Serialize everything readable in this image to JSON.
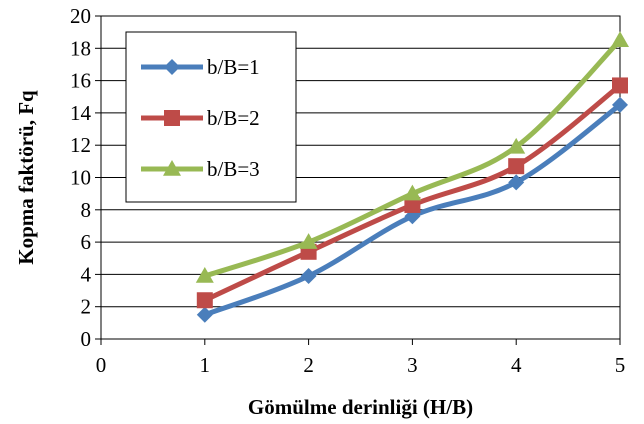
{
  "chart_data": {
    "type": "line",
    "xlabel": "Gömülme derinliği (H/B)",
    "ylabel": "Kopma faktörü, Fq",
    "xlim": [
      0,
      5
    ],
    "ylim": [
      0,
      20
    ],
    "x_ticks": [
      "0",
      "1",
      "2",
      "3",
      "4",
      "5"
    ],
    "y_ticks": [
      "0",
      "2",
      "4",
      "6",
      "8",
      "10",
      "12",
      "14",
      "16",
      "18",
      "20"
    ],
    "grid": "horizontal",
    "legend_position": "top-left",
    "x": [
      1,
      2,
      3,
      4,
      5
    ],
    "series": [
      {
        "name": "b/B=1",
        "color": "#4a7ebb",
        "marker": "diamond",
        "values": [
          1.5,
          3.9,
          7.6,
          9.7,
          14.5
        ]
      },
      {
        "name": "b/B=2",
        "color": "#be4b48",
        "marker": "square",
        "values": [
          2.4,
          5.4,
          8.3,
          10.7,
          15.7
        ]
      },
      {
        "name": "b/B=3",
        "color": "#98b954",
        "marker": "triangle",
        "values": [
          3.9,
          6.0,
          9.0,
          11.9,
          18.5
        ]
      }
    ]
  }
}
